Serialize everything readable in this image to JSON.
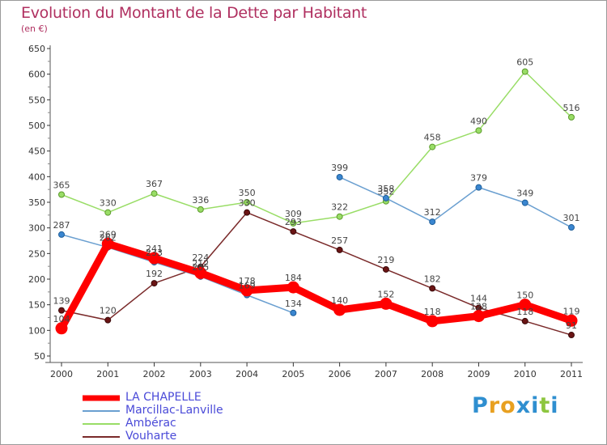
{
  "title": "Evolution du Montant de la Dette par Habitant",
  "subtitle": "(en €)",
  "brand": {
    "text": "Proxiti",
    "letter_colors": [
      "#2f8fd0",
      "#e8a020",
      "#e8a020",
      "#2f8fd0",
      "#2f8fd0",
      "#8dc63f",
      "#2f8fd0"
    ]
  },
  "chart_data": {
    "type": "line",
    "title": "Evolution du Montant de la Dette par Habitant",
    "ylabel": "(en €)",
    "xlabel": "",
    "x": [
      "2000",
      "2001",
      "2002",
      "2003",
      "2004",
      "2005",
      "2006",
      "2007",
      "2008",
      "2009",
      "2010",
      "2011"
    ],
    "ylim": [
      50,
      650
    ],
    "yticks": [
      "50",
      "100",
      "150",
      "200",
      "250",
      "300",
      "350",
      "400",
      "450",
      "500",
      "550",
      "600",
      "650"
    ],
    "grid": false,
    "legend_position": "bottom-left",
    "series": [
      {
        "name": "LA CHAPELLE",
        "color": "#ff0000",
        "values": [
          104,
          269,
          241,
          212,
          178,
          184,
          140,
          152,
          118,
          128,
          150,
          119
        ],
        "labels": [
          "104",
          "269",
          "241",
          "212",
          "178",
          "184",
          "140",
          "152",
          "118",
          "128",
          "150",
          "119"
        ]
      },
      {
        "name": "Marcillac-Lanville",
        "color": "#6a9fd0",
        "values": [
          287,
          262,
          233,
          205,
          169,
          134,
          null,
          null,
          null,
          null,
          null,
          null
        ],
        "labels": [
          "287",
          "262",
          "233",
          "205",
          "169",
          "134",
          "",
          "",
          "",
          "",
          "",
          ""
        ],
        "values_continued": [
          null,
          null,
          null,
          null,
          null,
          null,
          399,
          358,
          312,
          379,
          349,
          301
        ],
        "labels_continued": [
          "",
          "",
          "",
          "",
          "",
          "",
          "399",
          "358",
          "312",
          "379",
          "349",
          "301"
        ]
      },
      {
        "name": "Ambérac",
        "color": "#99dd66",
        "values": [
          365,
          330,
          367,
          336,
          350,
          309,
          322,
          352,
          458,
          490,
          605,
          516
        ],
        "labels": [
          "365",
          "330",
          "367",
          "336",
          "350",
          "309",
          "322",
          "352",
          "458",
          "490",
          "605",
          "516"
        ]
      },
      {
        "name": "Vouharte",
        "color": "#7a2a2a",
        "values": [
          139,
          120,
          192,
          224,
          330,
          293,
          257,
          219,
          182,
          144,
          118,
          91
        ],
        "labels": [
          "139",
          "120",
          "192",
          "224",
          "330",
          "293",
          "257",
          "219",
          "182",
          "144",
          "118",
          "91"
        ]
      }
    ]
  }
}
